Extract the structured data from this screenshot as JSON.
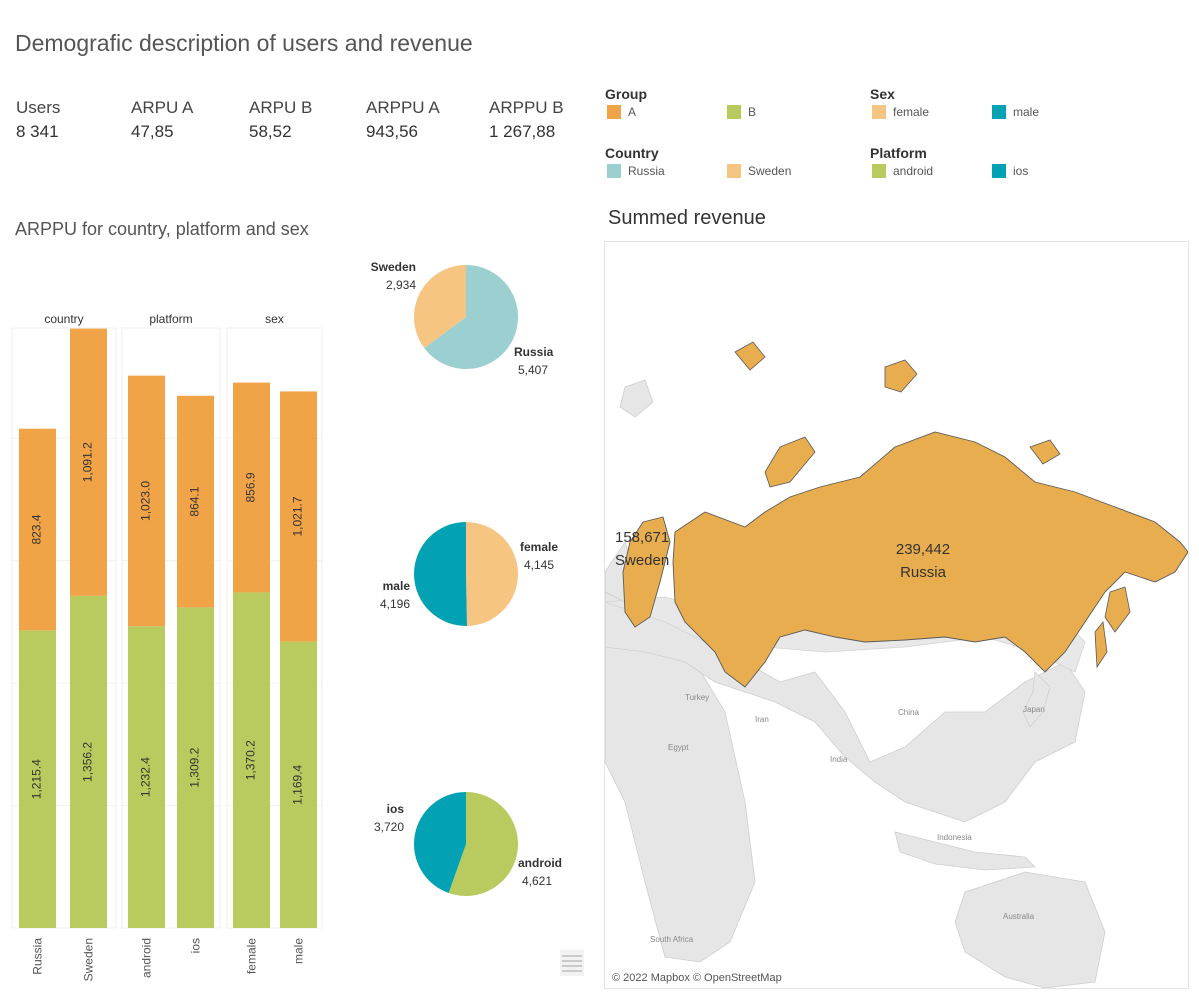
{
  "title": "Demografic description of users and revenue",
  "kpis": [
    {
      "label": "Users",
      "value": "8 341"
    },
    {
      "label": "ARPU A",
      "value": "47,85"
    },
    {
      "label": "ARPU B",
      "value": "58,52"
    },
    {
      "label": "ARPPU A",
      "value": "943,56"
    },
    {
      "label": "ARPPU B",
      "value": "1 267,88"
    }
  ],
  "legends": {
    "group": {
      "title": "Group",
      "items": [
        {
          "label": "A",
          "color": "#f0a347"
        },
        {
          "label": "B",
          "color": "#b9cb5e"
        }
      ]
    },
    "sex": {
      "title": "Sex",
      "items": [
        {
          "label": "female",
          "color": "#f6c582"
        },
        {
          "label": "male",
          "color": "#02a2b4"
        }
      ]
    },
    "country": {
      "title": "Country",
      "items": [
        {
          "label": "Russia",
          "color": "#9ccfcf"
        },
        {
          "label": "Sweden",
          "color": "#f6c582"
        }
      ]
    },
    "platform": {
      "title": "Platform",
      "items": [
        {
          "label": "android",
          "color": "#b9cb5e"
        },
        {
          "label": "ios",
          "color": "#02a2b4"
        }
      ]
    }
  },
  "bar_section_title": "ARPPU for country, platform and sex",
  "map": {
    "title": "Summed revenue",
    "attribution": "© 2022 Mapbox © OpenStreetMap",
    "fill_color": "#e8ad4e",
    "regions": [
      {
        "value": "239,442",
        "name": "Russia"
      },
      {
        "value": "158,671",
        "name": "Sweden"
      }
    ],
    "basemap_labels": [
      "Turkey",
      "Iran",
      "Egypt",
      "India",
      "China",
      "Japan",
      "Indonesia",
      "Australia",
      "South Africa"
    ]
  },
  "chart_data": [
    {
      "type": "bar",
      "stacked": true,
      "title": "ARPPU for country, platform and sex",
      "panels": [
        {
          "name": "country",
          "categories": [
            "Russia",
            "Sweden"
          ]
        },
        {
          "name": "platform",
          "categories": [
            "android",
            "ios"
          ]
        },
        {
          "name": "sex",
          "categories": [
            "female",
            "male"
          ]
        }
      ],
      "categories": [
        "Russia",
        "Sweden",
        "android",
        "ios",
        "female",
        "male"
      ],
      "series": [
        {
          "name": "B",
          "color": "#b9cb5e",
          "values": [
            1215.4,
            1356.2,
            1232.4,
            1309.2,
            1370.2,
            1169.4
          ],
          "labels": [
            "1,215.4",
            "1,356.2",
            "1,232.4",
            "1,309.2",
            "1,370.2",
            "1,169.4"
          ]
        },
        {
          "name": "A",
          "color": "#f0a347",
          "values": [
            823.4,
            1091.2,
            1023.0,
            864.1,
            856.9,
            1021.7
          ],
          "labels": [
            "823.4",
            "1,091.2",
            "1,023.0",
            "864.1",
            "856.9",
            "1,021.7"
          ]
        }
      ],
      "ylim": [
        0,
        2450
      ],
      "grid": true
    },
    {
      "type": "pie",
      "slices": [
        {
          "label": "Russia",
          "value": 5407,
          "value_label": "5,407",
          "color": "#9ccfcf"
        },
        {
          "label": "Sweden",
          "value": 2934,
          "value_label": "2,934",
          "color": "#f6c582"
        }
      ]
    },
    {
      "type": "pie",
      "slices": [
        {
          "label": "female",
          "value": 4145,
          "value_label": "4,145",
          "color": "#f6c582"
        },
        {
          "label": "male",
          "value": 4196,
          "value_label": "4,196",
          "color": "#02a2b4"
        }
      ]
    },
    {
      "type": "pie",
      "slices": [
        {
          "label": "android",
          "value": 4621,
          "value_label": "4,621",
          "color": "#b9cb5e"
        },
        {
          "label": "ios",
          "value": 3720,
          "value_label": "3,720",
          "color": "#02a2b4"
        }
      ]
    }
  ]
}
